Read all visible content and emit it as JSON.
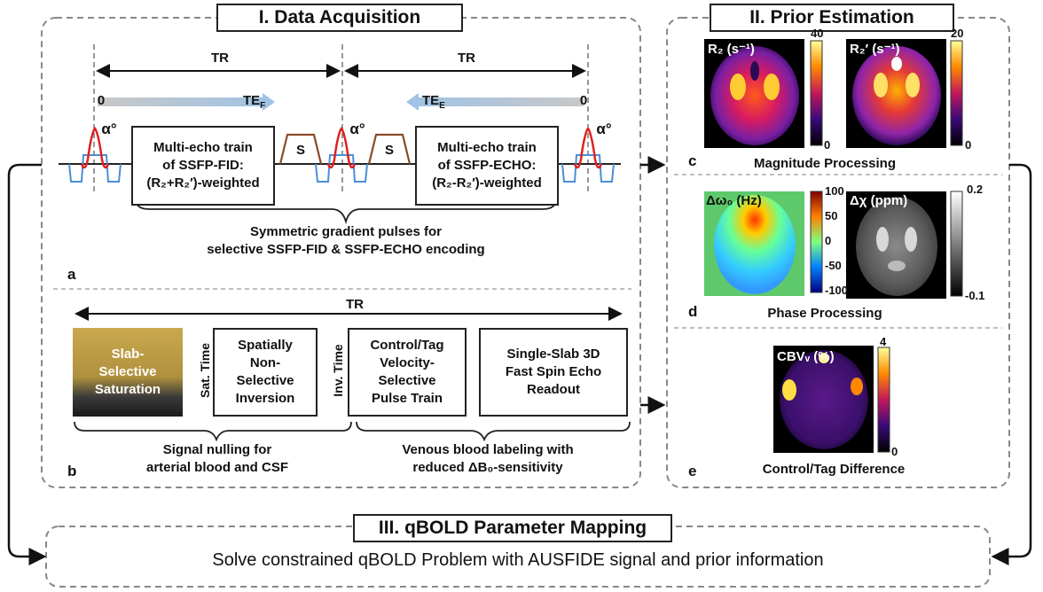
{
  "section1": {
    "title": "I. Data Acquisition"
  },
  "section2": {
    "title": "II. Prior Estimation"
  },
  "section3": {
    "title": "III. qBOLD Parameter Mapping",
    "description": "Solve constrained qBOLD Problem with AUSFIDE signal and prior information"
  },
  "panel_a": {
    "letter": "a",
    "tr_left": "TR",
    "tr_right": "TR",
    "te_f": "TE",
    "te_f_sub": "F",
    "te_e": "TE",
    "te_e_sub": "E",
    "zero_left": "0",
    "zero_right": "0",
    "alpha": "α°",
    "fid_box": [
      "Multi-echo train",
      "of SSFP-FID:",
      "(R₂+R₂′)-weighted"
    ],
    "echo_box": [
      "Multi-echo train",
      "of SSFP-ECHO:",
      "(R₂-R₂′)-weighted"
    ],
    "spoiler": "S",
    "caption": [
      "Symmetric gradient pulses for",
      "selective SSFP-FID & SSFP-ECHO encoding"
    ]
  },
  "panel_b": {
    "letter": "b",
    "tr": "TR",
    "slab_label": [
      "Slab-",
      "Selective",
      "Saturation"
    ],
    "sat_time": "Sat. Time",
    "inv_box": [
      "Spatially",
      "Non-",
      "Selective",
      "Inversion"
    ],
    "inv_time": "Inv. Time",
    "control_box": [
      "Control/Tag",
      "Velocity-",
      "Selective",
      "Pulse Train"
    ],
    "readout_box": [
      "Single-Slab 3D",
      "Fast Spin Echo",
      "Readout"
    ],
    "caption_left": [
      "Signal nulling for",
      "arterial blood and CSF"
    ],
    "caption_right": [
      "Venous blood labeling with",
      "reduced ΔB₀-sensitivity"
    ]
  },
  "panel_c": {
    "letter": "c",
    "caption": "Magnitude Processing",
    "map1_label": "R₂ (s⁻¹)",
    "map1_max": "40",
    "map1_min": "0",
    "map2_label": "R₂′ (s⁻¹)",
    "map2_max": "20",
    "map2_min": "0"
  },
  "panel_d": {
    "letter": "d",
    "caption": "Phase Processing",
    "map1_label": "Δω₀ (Hz)",
    "map1_ticks": [
      "100",
      "50",
      "0",
      "-50",
      "-100"
    ],
    "map2_label": "Δχ (ppm)",
    "map2_max": "0.2",
    "map2_min": "-0.1"
  },
  "panel_e": {
    "letter": "e",
    "caption": "Control/Tag Difference",
    "map_label": "CBVᵥ (%)",
    "map_max": "4",
    "map_min": "0"
  }
}
